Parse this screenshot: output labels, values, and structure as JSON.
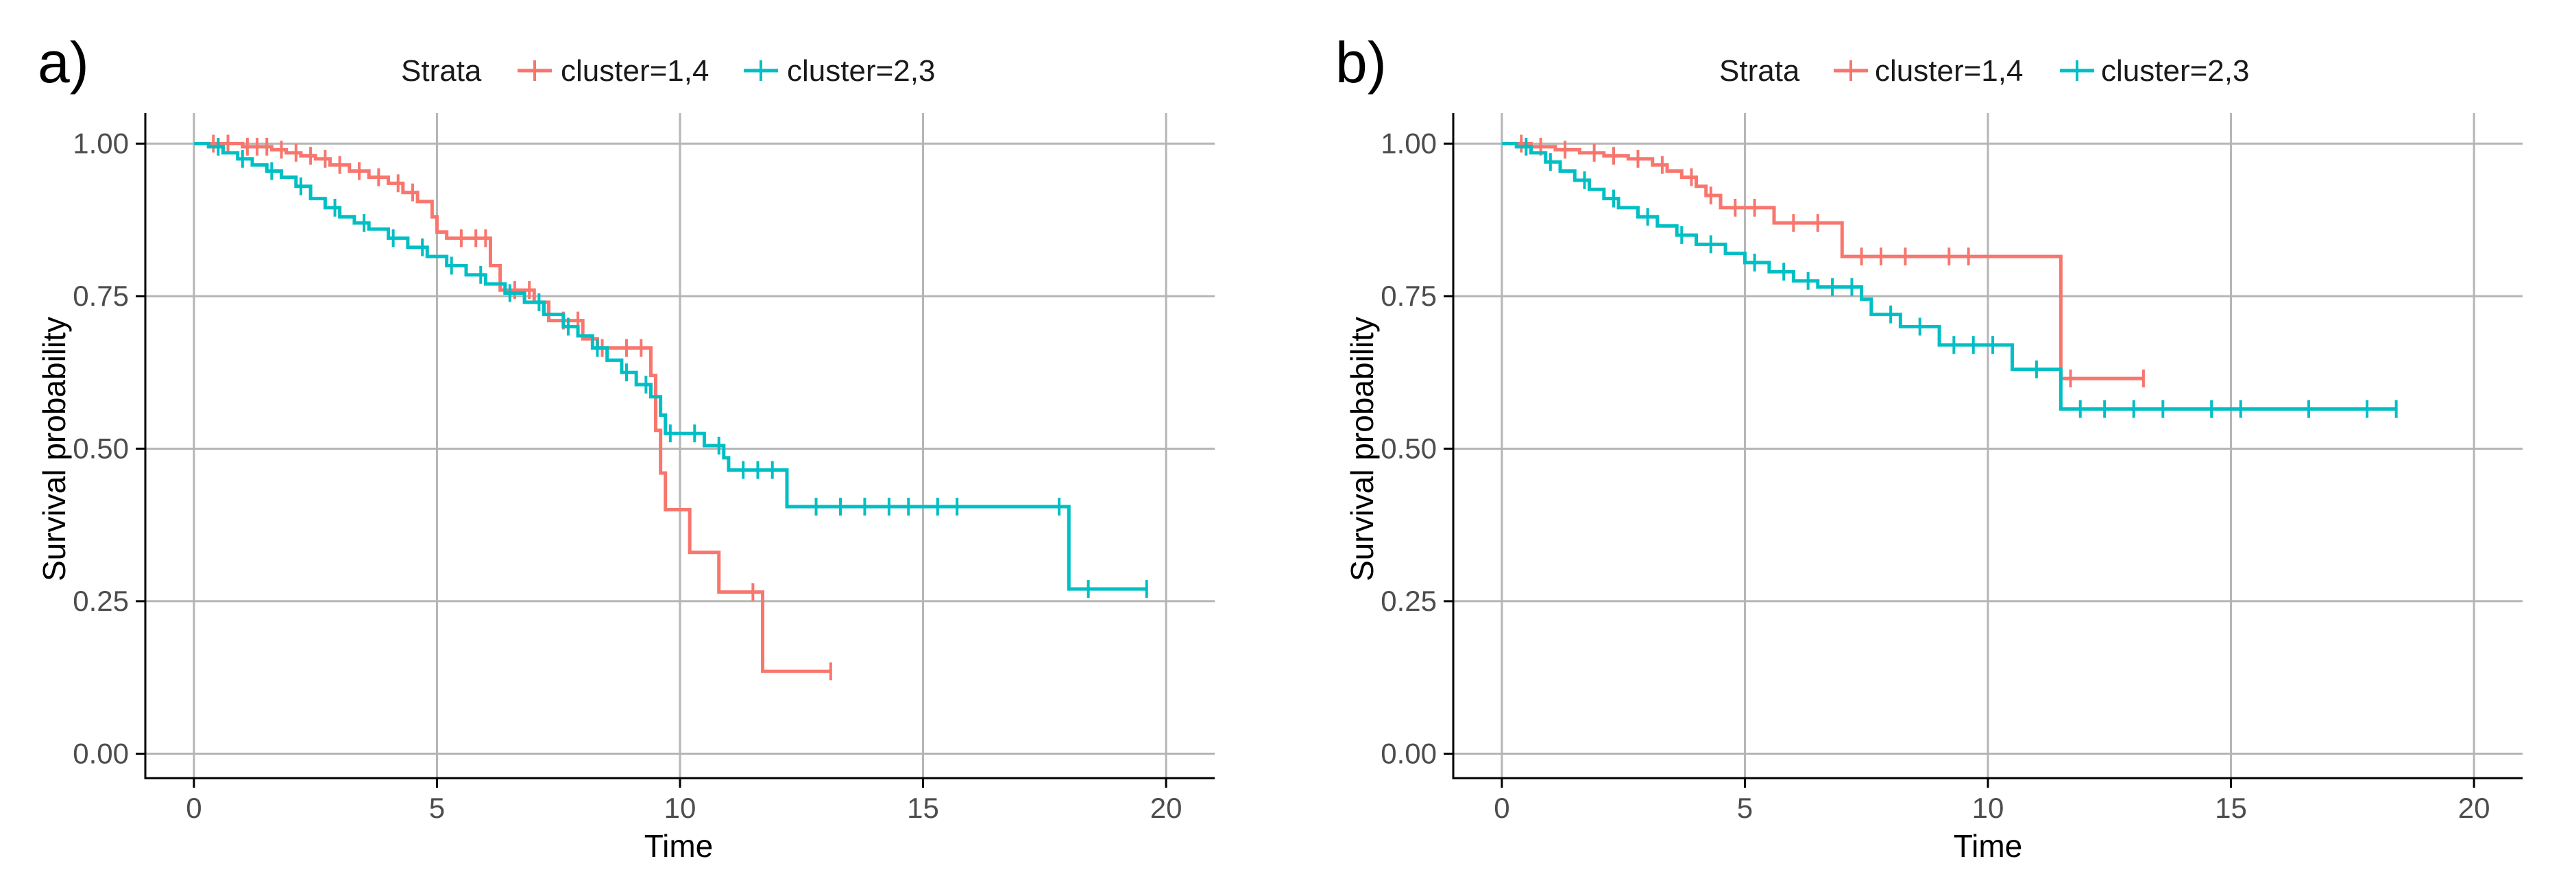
{
  "colors": {
    "cluster_14": "#F8766D",
    "cluster_23": "#00BFC4",
    "grid": "#b5b5b5"
  },
  "chart_data": [
    {
      "type": "line",
      "panel_label": "a)",
      "title": "",
      "xlabel": "Time",
      "ylabel": "Survival probability",
      "xlim": [
        -1,
        21
      ],
      "ylim": [
        -0.04,
        1.05
      ],
      "xticks": [
        0,
        5,
        10,
        15,
        20
      ],
      "xtick_labels": [
        "0",
        "5",
        "10",
        "15",
        "20"
      ],
      "yticks": [
        0,
        0.25,
        0.5,
        0.75,
        1.0
      ],
      "ytick_labels": [
        "0.00",
        "0.25",
        "0.50",
        "0.75",
        "1.00"
      ],
      "grid": true,
      "legend": {
        "title": "Strata",
        "position": "top",
        "entries": [
          "cluster=1,4",
          "cluster=2,3"
        ]
      },
      "series": [
        {
          "name": "cluster=1,4",
          "color": "#F8766D",
          "steps": [
            [
              0,
              1.0
            ],
            [
              1.0,
              0.995
            ],
            [
              1.6,
              0.99
            ],
            [
              1.9,
              0.985
            ],
            [
              2.2,
              0.98
            ],
            [
              2.5,
              0.975
            ],
            [
              2.8,
              0.965
            ],
            [
              3.2,
              0.955
            ],
            [
              3.6,
              0.945
            ],
            [
              4.0,
              0.935
            ],
            [
              4.3,
              0.92
            ],
            [
              4.6,
              0.905
            ],
            [
              4.9,
              0.88
            ],
            [
              5.0,
              0.855
            ],
            [
              5.2,
              0.845
            ],
            [
              6.1,
              0.8
            ],
            [
              6.3,
              0.76
            ],
            [
              7.0,
              0.74
            ],
            [
              7.3,
              0.71
            ],
            [
              8.0,
              0.68
            ],
            [
              8.3,
              0.665
            ],
            [
              9.4,
              0.62
            ],
            [
              9.5,
              0.53
            ],
            [
              9.6,
              0.46
            ],
            [
              9.7,
              0.4
            ],
            [
              10.2,
              0.33
            ],
            [
              10.8,
              0.265
            ],
            [
              11.7,
              0.135
            ]
          ],
          "end_time": 13.1,
          "censor_times": [
            0.4,
            0.7,
            1.1,
            1.3,
            1.5,
            1.8,
            2.1,
            2.4,
            2.7,
            3.0,
            3.4,
            3.8,
            4.2,
            4.5,
            5.5,
            5.8,
            6.0,
            6.6,
            6.9,
            7.6,
            7.9,
            8.4,
            8.9,
            9.2,
            11.5,
            13.1
          ]
        },
        {
          "name": "cluster=2,3",
          "color": "#00BFC4",
          "steps": [
            [
              0,
              1.0
            ],
            [
              0.3,
              0.995
            ],
            [
              0.6,
              0.985
            ],
            [
              0.9,
              0.975
            ],
            [
              1.2,
              0.965
            ],
            [
              1.5,
              0.955
            ],
            [
              1.8,
              0.945
            ],
            [
              2.1,
              0.93
            ],
            [
              2.4,
              0.91
            ],
            [
              2.7,
              0.895
            ],
            [
              3.0,
              0.88
            ],
            [
              3.3,
              0.87
            ],
            [
              3.6,
              0.86
            ],
            [
              4.0,
              0.845
            ],
            [
              4.4,
              0.83
            ],
            [
              4.8,
              0.815
            ],
            [
              5.2,
              0.8
            ],
            [
              5.6,
              0.785
            ],
            [
              6.0,
              0.77
            ],
            [
              6.4,
              0.755
            ],
            [
              6.8,
              0.74
            ],
            [
              7.2,
              0.72
            ],
            [
              7.6,
              0.7
            ],
            [
              7.9,
              0.685
            ],
            [
              8.2,
              0.665
            ],
            [
              8.5,
              0.645
            ],
            [
              8.8,
              0.625
            ],
            [
              9.1,
              0.605
            ],
            [
              9.4,
              0.585
            ],
            [
              9.6,
              0.555
            ],
            [
              9.7,
              0.525
            ],
            [
              10.5,
              0.505
            ],
            [
              10.9,
              0.485
            ],
            [
              11.0,
              0.465
            ],
            [
              12.2,
              0.405
            ],
            [
              18.0,
              0.27
            ]
          ],
          "end_time": 19.6,
          "censor_times": [
            0.5,
            1.0,
            1.6,
            2.2,
            2.9,
            3.5,
            4.1,
            4.7,
            5.3,
            5.9,
            6.5,
            7.1,
            7.7,
            8.3,
            8.9,
            9.3,
            9.8,
            10.3,
            10.8,
            11.3,
            11.6,
            11.9,
            12.8,
            13.3,
            13.8,
            14.3,
            14.7,
            15.3,
            15.7,
            17.8,
            18.4,
            19.6
          ]
        }
      ]
    },
    {
      "type": "line",
      "panel_label": "b)",
      "title": "",
      "xlabel": "Time",
      "ylabel": "Survival probability",
      "xlim": [
        -1,
        21
      ],
      "ylim": [
        -0.04,
        1.05
      ],
      "xticks": [
        0,
        5,
        10,
        15,
        20
      ],
      "xtick_labels": [
        "0",
        "5",
        "10",
        "15",
        "20"
      ],
      "yticks": [
        0,
        0.25,
        0.5,
        0.75,
        1.0
      ],
      "ytick_labels": [
        "0.00",
        "0.25",
        "0.50",
        "0.75",
        "1.00"
      ],
      "grid": true,
      "legend": {
        "title": "Strata",
        "position": "top",
        "entries": [
          "cluster=1,4",
          "cluster=2,3"
        ]
      },
      "series": [
        {
          "name": "cluster=1,4",
          "color": "#F8766D",
          "steps": [
            [
              0,
              1.0
            ],
            [
              0.6,
              0.995
            ],
            [
              1.1,
              0.99
            ],
            [
              1.6,
              0.985
            ],
            [
              2.1,
              0.98
            ],
            [
              2.6,
              0.975
            ],
            [
              3.1,
              0.965
            ],
            [
              3.4,
              0.955
            ],
            [
              3.7,
              0.945
            ],
            [
              4.0,
              0.93
            ],
            [
              4.2,
              0.915
            ],
            [
              4.5,
              0.895
            ],
            [
              5.6,
              0.87
            ],
            [
              7.0,
              0.815
            ],
            [
              11.5,
              0.615
            ]
          ],
          "end_time": 13.2,
          "censor_times": [
            0.4,
            0.8,
            1.3,
            1.9,
            2.3,
            2.8,
            3.3,
            3.9,
            4.3,
            4.8,
            5.2,
            6.0,
            6.5,
            7.4,
            7.8,
            8.3,
            9.2,
            9.6,
            11.7,
            13.2
          ]
        },
        {
          "name": "cluster=2,3",
          "color": "#00BFC4",
          "steps": [
            [
              0,
              1.0
            ],
            [
              0.3,
              0.995
            ],
            [
              0.6,
              0.985
            ],
            [
              0.9,
              0.97
            ],
            [
              1.2,
              0.955
            ],
            [
              1.5,
              0.94
            ],
            [
              1.8,
              0.925
            ],
            [
              2.1,
              0.91
            ],
            [
              2.4,
              0.895
            ],
            [
              2.8,
              0.88
            ],
            [
              3.2,
              0.865
            ],
            [
              3.6,
              0.85
            ],
            [
              4.0,
              0.835
            ],
            [
              4.6,
              0.82
            ],
            [
              5.0,
              0.805
            ],
            [
              5.5,
              0.79
            ],
            [
              6.0,
              0.775
            ],
            [
              6.5,
              0.765
            ],
            [
              7.4,
              0.745
            ],
            [
              7.6,
              0.72
            ],
            [
              8.2,
              0.7
            ],
            [
              9.0,
              0.67
            ],
            [
              10.5,
              0.63
            ],
            [
              11.5,
              0.565
            ]
          ],
          "end_time": 18.4,
          "censor_times": [
            0.5,
            1.0,
            1.7,
            2.3,
            3.0,
            3.7,
            4.3,
            5.2,
            5.8,
            6.3,
            6.8,
            7.2,
            8.0,
            8.6,
            9.3,
            9.7,
            10.1,
            11.0,
            11.9,
            12.4,
            13.0,
            13.6,
            14.6,
            15.2,
            16.6,
            17.8,
            18.4
          ]
        }
      ]
    }
  ]
}
